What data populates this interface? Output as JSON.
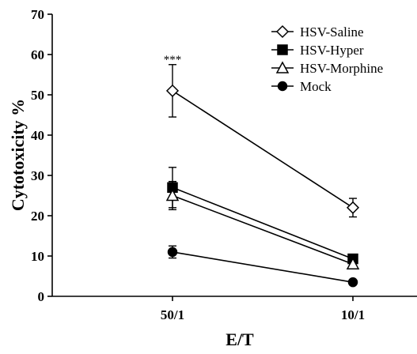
{
  "chart_data": {
    "type": "line",
    "xlabel": "E/T",
    "ylabel": "Cytotoxicity %",
    "categories": [
      "50/1",
      "10/1"
    ],
    "ylim": [
      0,
      70
    ],
    "yticks": [
      0,
      10,
      20,
      30,
      40,
      50,
      60,
      70
    ],
    "grid": false,
    "legend_position": "top-right",
    "annotations": [
      {
        "text": "***",
        "category": "50/1",
        "y": 59
      }
    ],
    "series": [
      {
        "name": "HSV-Saline",
        "marker": "open-diamond",
        "values": [
          51,
          22
        ],
        "error": [
          6.5,
          2.3
        ]
      },
      {
        "name": "HSV-Hyper",
        "marker": "filled-square",
        "values": [
          27,
          9.3
        ],
        "error": [
          5,
          0
        ]
      },
      {
        "name": "HSV-Morphine",
        "marker": "open-triangle",
        "values": [
          25,
          8
        ],
        "error": [
          3.5,
          1
        ]
      },
      {
        "name": "Mock",
        "marker": "filled-circle",
        "values": [
          11,
          3.5
        ],
        "error": [
          1.5,
          0
        ]
      }
    ]
  }
}
